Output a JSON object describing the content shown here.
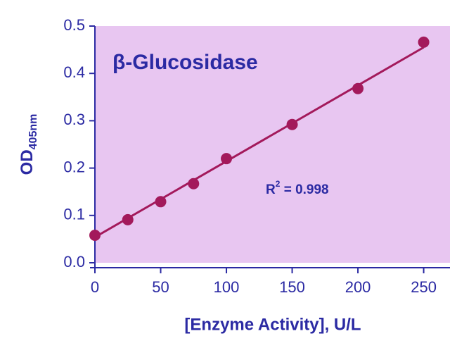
{
  "chart_data": {
    "type": "scatter",
    "title": "β-Glucosidase",
    "x_label": "[Enzyme Activity], U/L",
    "y_label": {
      "text": "OD",
      "subscript": "405nm"
    },
    "annotation": {
      "text": "R",
      "superscript": "2",
      "rest": " = 0.998"
    },
    "x": [
      0,
      25,
      50,
      75,
      100,
      150,
      200,
      250
    ],
    "values": [
      0.058,
      0.091,
      0.129,
      0.167,
      0.22,
      0.292,
      0.368,
      0.466
    ],
    "color": "#a3195b",
    "fit_line": {
      "x": [
        0,
        250
      ],
      "values": [
        0.054,
        0.455
      ]
    },
    "xlim": [
      0,
      270
    ],
    "ylim": [
      0,
      0.5
    ],
    "xticks": [
      0,
      50,
      100,
      150,
      200,
      250
    ],
    "yticks": [
      {
        "value": 0,
        "label": "0.0"
      },
      0.1,
      0.2,
      0.3,
      0.4,
      0.5
    ],
    "plot_background": "#e8c6f1",
    "text_color": "#2b2aa3"
  }
}
